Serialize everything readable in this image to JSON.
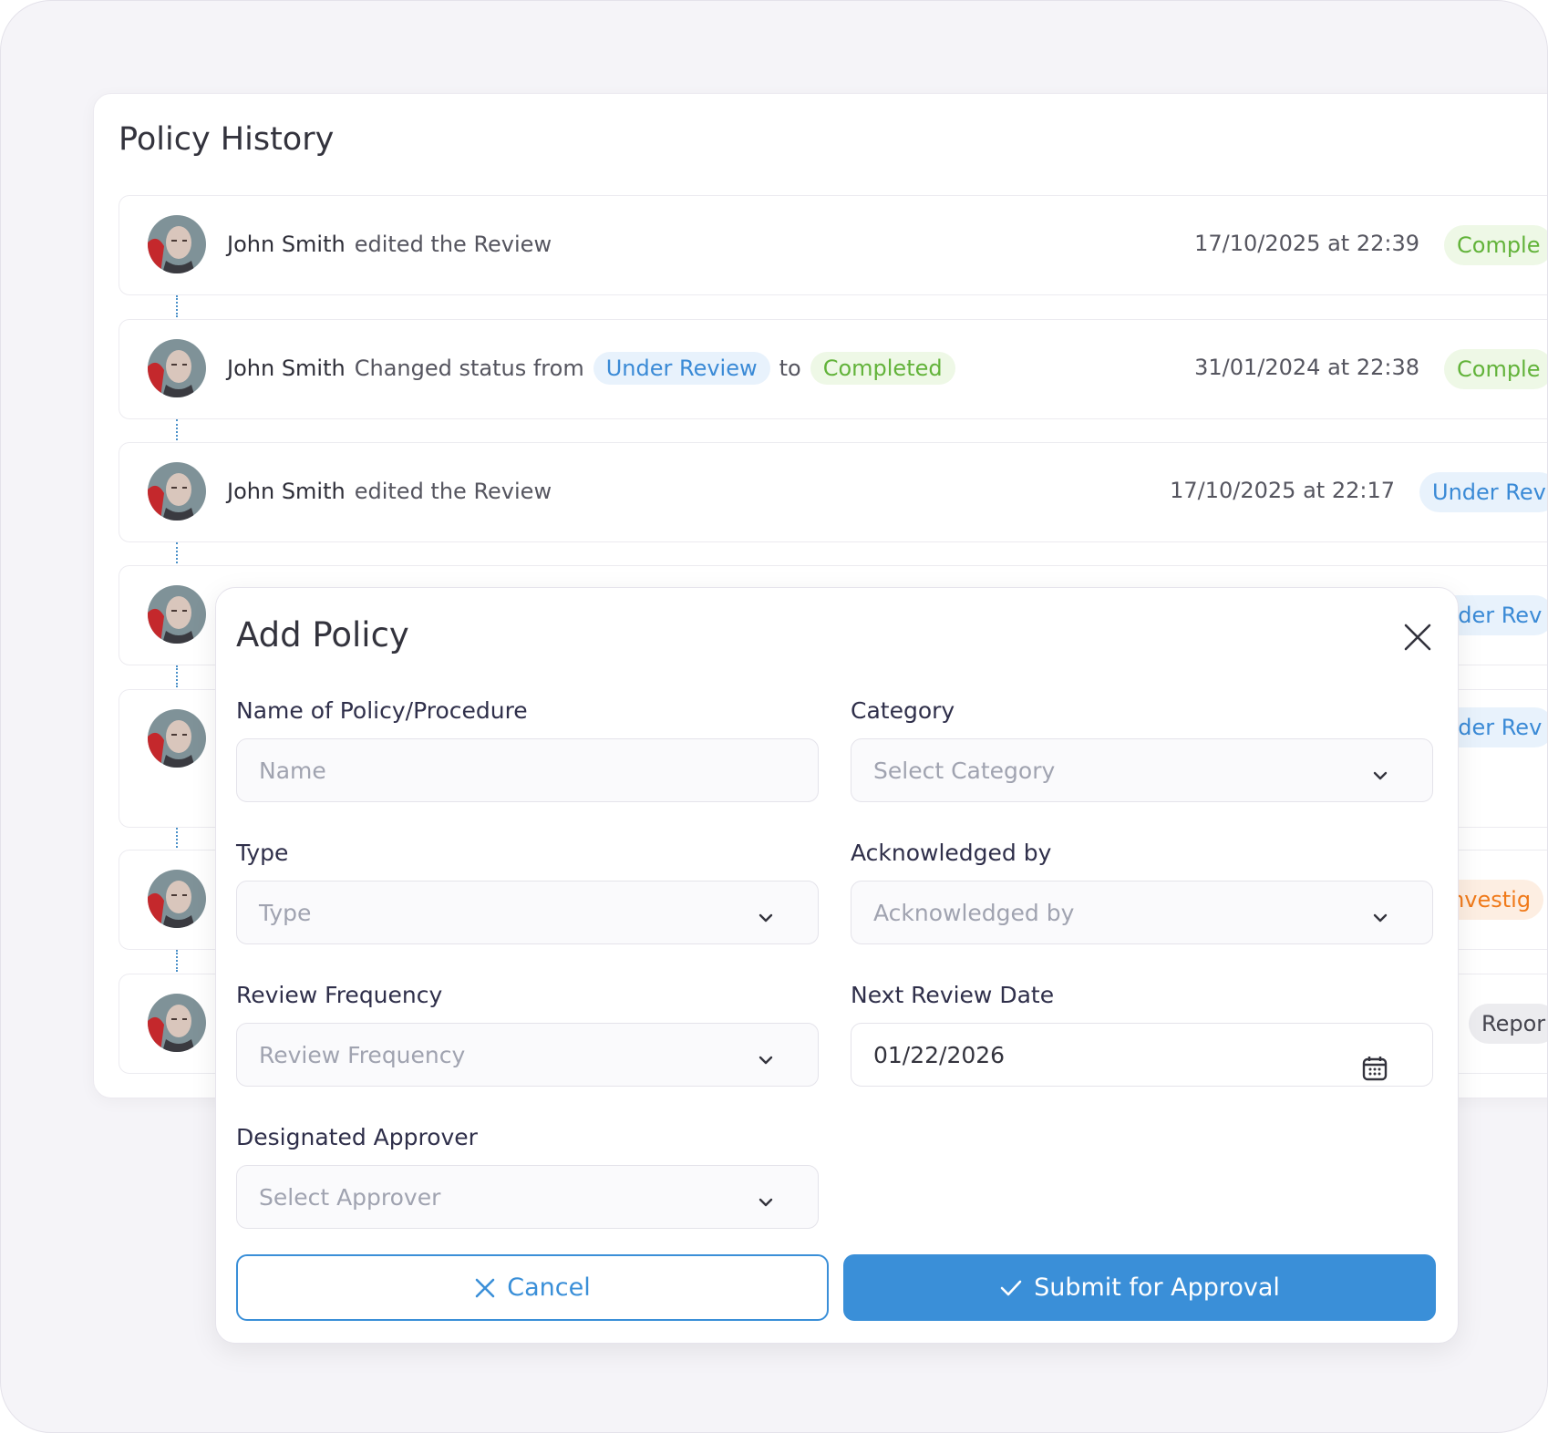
{
  "history": {
    "title": "Policy History",
    "entries": [
      {
        "name": "John Smith",
        "action": "edited the Review",
        "date": "17/10/2025 at 22:39",
        "status": "Comple"
      },
      {
        "name": "John Smith",
        "action": "Changed status from",
        "from": "Under Review",
        "joiner": "to",
        "to": "Completed",
        "date": "31/01/2024 at 22:38",
        "status": "Comple"
      },
      {
        "name": "John Smith",
        "action": "edited the Review",
        "date": "17/10/2025 at 22:17",
        "status": "Under Rev"
      },
      {
        "status": "nder Rev"
      },
      {
        "status": "nder Rev"
      },
      {
        "status": "Investig"
      },
      {
        "status": "Repor"
      }
    ]
  },
  "modal": {
    "title": "Add Policy",
    "fields": [
      {
        "label": "Name of Policy/Procedure",
        "placeholder": "Name"
      },
      {
        "label": "Category",
        "placeholder": "Select Category"
      },
      {
        "label": "Type",
        "placeholder": "Type"
      },
      {
        "label": "Acknowledged by",
        "placeholder": "Acknowledged by"
      },
      {
        "label": "Review Frequency",
        "placeholder": "Review Frequency"
      },
      {
        "label": "Next Review Date",
        "value": "01/22/2026"
      },
      {
        "label": "Designated Approver",
        "placeholder": "Select Approver"
      }
    ],
    "cancel": "Cancel",
    "submit": "Submit for Approval"
  }
}
